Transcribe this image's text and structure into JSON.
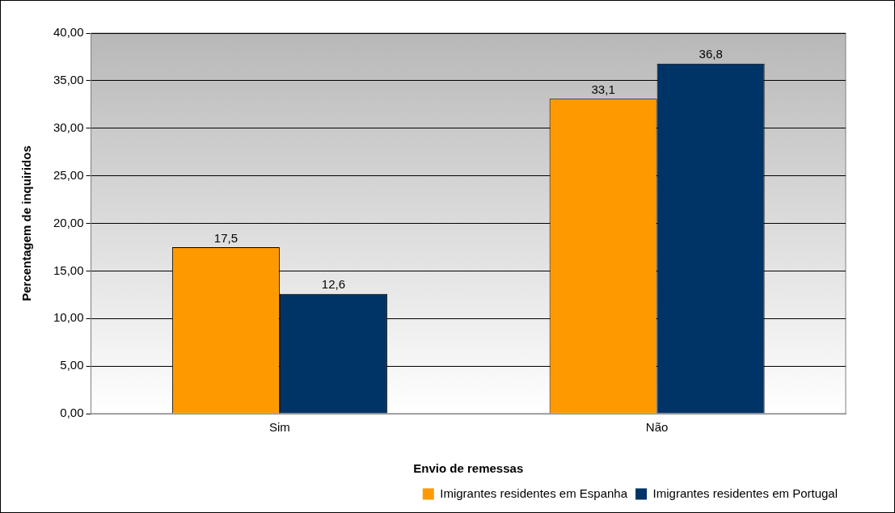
{
  "chart_data": {
    "type": "bar",
    "xlabel": "Envio de remessas",
    "ylabel": "Percentagem de inquiridos",
    "categories": [
      "Sim",
      "Não"
    ],
    "series": [
      {
        "name": "Imigrantes residentes em Espanha",
        "color": "#ff9900",
        "values": [
          17.5,
          33.1
        ],
        "value_labels": [
          "17,5",
          "33,1"
        ]
      },
      {
        "name": "Imigrantes residentes em Portugal",
        "color": "#003366",
        "values": [
          12.6,
          36.8
        ],
        "value_labels": [
          "12,6",
          "36,8"
        ]
      }
    ],
    "ylim": [
      0,
      40
    ],
    "yticks": [
      {
        "value": 0,
        "label": "0,00"
      },
      {
        "value": 5,
        "label": "5,00"
      },
      {
        "value": 10,
        "label": "10,00"
      },
      {
        "value": 15,
        "label": "15,00"
      },
      {
        "value": 20,
        "label": "20,00"
      },
      {
        "value": 25,
        "label": "25,00"
      },
      {
        "value": 30,
        "label": "30,00"
      },
      {
        "value": 35,
        "label": "35,00"
      },
      {
        "value": 40,
        "label": "40,00"
      }
    ],
    "grid": "y",
    "legend": "bottom right"
  }
}
